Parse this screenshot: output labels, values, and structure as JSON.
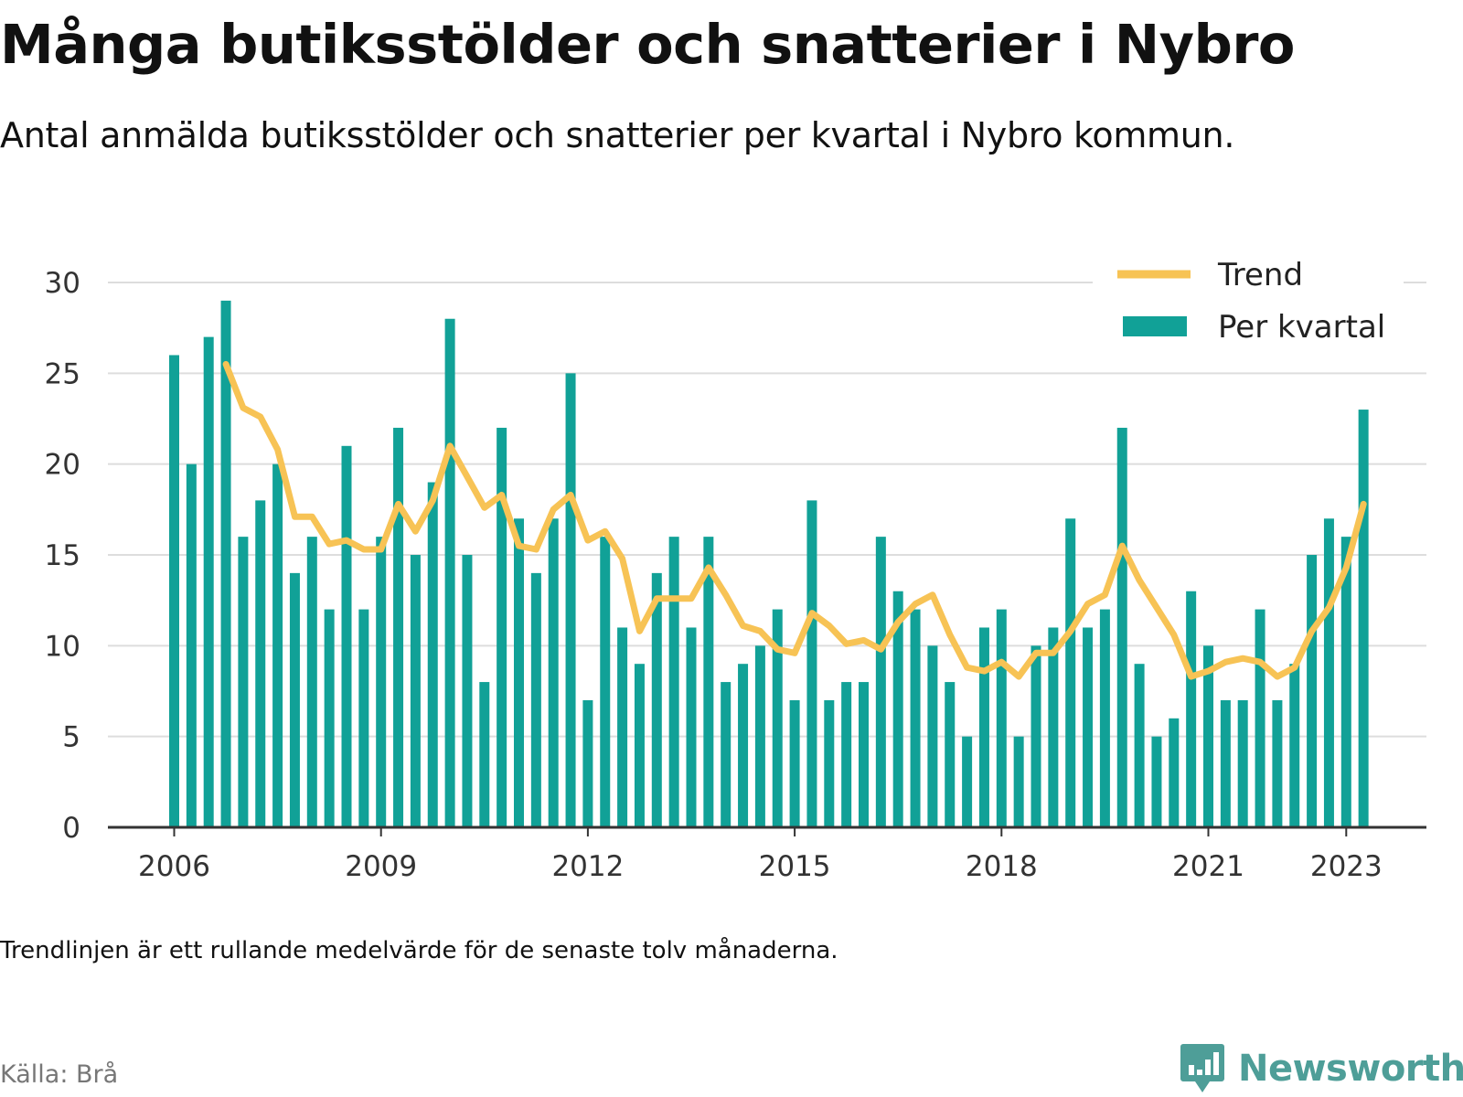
{
  "title": "Många butiksstölder och snatterier i Nybro",
  "subtitle": "Antal anmälda butiksstölder och snatterier per kvartal i Nybro kommun.",
  "note": "Trendlinjen är ett rullande medelvärde för de senaste tolv månaderna.",
  "source": "Källa: Brå",
  "brand": "Newsworthy",
  "colors": {
    "bars": "#11a197",
    "trend": "#f7c355",
    "grid": "#dddddd",
    "axis": "#333333",
    "brand": "#4e9e98"
  },
  "chart_data": {
    "type": "bar",
    "xlabel": "",
    "ylabel": "",
    "ylim": [
      0,
      30
    ],
    "yticks": [
      "0",
      "5",
      "10",
      "15",
      "20",
      "25",
      "30"
    ],
    "xticks": [
      "2006",
      "2009",
      "2012",
      "2015",
      "2018",
      "2021",
      "2023"
    ],
    "grid": true,
    "legend_position": "top-right",
    "x": [
      "2006 Q1",
      "2006 Q2",
      "2006 Q3",
      "2006 Q4",
      "2007 Q1",
      "2007 Q2",
      "2007 Q3",
      "2007 Q4",
      "2008 Q1",
      "2008 Q2",
      "2008 Q3",
      "2008 Q4",
      "2009 Q1",
      "2009 Q2",
      "2009 Q3",
      "2009 Q4",
      "2010 Q1",
      "2010 Q2",
      "2010 Q3",
      "2010 Q4",
      "2011 Q1",
      "2011 Q2",
      "2011 Q3",
      "2011 Q4",
      "2012 Q1",
      "2012 Q2",
      "2012 Q3",
      "2012 Q4",
      "2013 Q1",
      "2013 Q2",
      "2013 Q3",
      "2013 Q4",
      "2014 Q1",
      "2014 Q2",
      "2014 Q3",
      "2014 Q4",
      "2015 Q1",
      "2015 Q2",
      "2015 Q3",
      "2015 Q4",
      "2016 Q1",
      "2016 Q2",
      "2016 Q3",
      "2016 Q4",
      "2017 Q1",
      "2017 Q2",
      "2017 Q3",
      "2017 Q4",
      "2018 Q1",
      "2018 Q2",
      "2018 Q3",
      "2018 Q4",
      "2019 Q1",
      "2019 Q2",
      "2019 Q3",
      "2019 Q4",
      "2020 Q1",
      "2020 Q2",
      "2020 Q3",
      "2020 Q4",
      "2021 Q1",
      "2021 Q2",
      "2021 Q3",
      "2021 Q4",
      "2022 Q1",
      "2022 Q2",
      "2022 Q3",
      "2022 Q4",
      "2023 Q1",
      "2023 Q2"
    ],
    "series": [
      {
        "name": "Per kvartal",
        "kind": "bar",
        "values": [
          26,
          20,
          27,
          29,
          16,
          18,
          20,
          14,
          16,
          12,
          21,
          12,
          16,
          22,
          15,
          19,
          28,
          15,
          8,
          22,
          17,
          14,
          17,
          25,
          7,
          16,
          11,
          9,
          14,
          16,
          11,
          16,
          8,
          9,
          10,
          12,
          7,
          18,
          7,
          8,
          8,
          16,
          13,
          12,
          10,
          8,
          5,
          11,
          12,
          5,
          10,
          11,
          17,
          11,
          12,
          22,
          9,
          5,
          6,
          13,
          10,
          7,
          7,
          12,
          7,
          9,
          15,
          17,
          16,
          23
        ]
      },
      {
        "name": "Trend",
        "kind": "line",
        "values": [
          null,
          null,
          null,
          25.5,
          23.1,
          22.6,
          20.8,
          17.1,
          17.1,
          15.6,
          15.8,
          15.3,
          15.3,
          17.8,
          16.3,
          18.0,
          21.0,
          19.3,
          17.6,
          18.3,
          15.5,
          15.3,
          17.5,
          18.3,
          15.8,
          16.3,
          14.8,
          10.8,
          12.6,
          12.6,
          12.6,
          14.3,
          12.8,
          11.1,
          10.8,
          9.8,
          9.6,
          11.8,
          11.1,
          10.1,
          10.3,
          9.8,
          11.3,
          12.3,
          12.8,
          10.6,
          8.8,
          8.6,
          9.1,
          8.3,
          9.6,
          9.6,
          10.8,
          12.3,
          12.8,
          15.5,
          13.6,
          12.1,
          10.6,
          8.3,
          8.6,
          9.1,
          9.3,
          9.1,
          8.3,
          8.8,
          10.8,
          12.1,
          14.3,
          17.8
        ]
      }
    ]
  }
}
